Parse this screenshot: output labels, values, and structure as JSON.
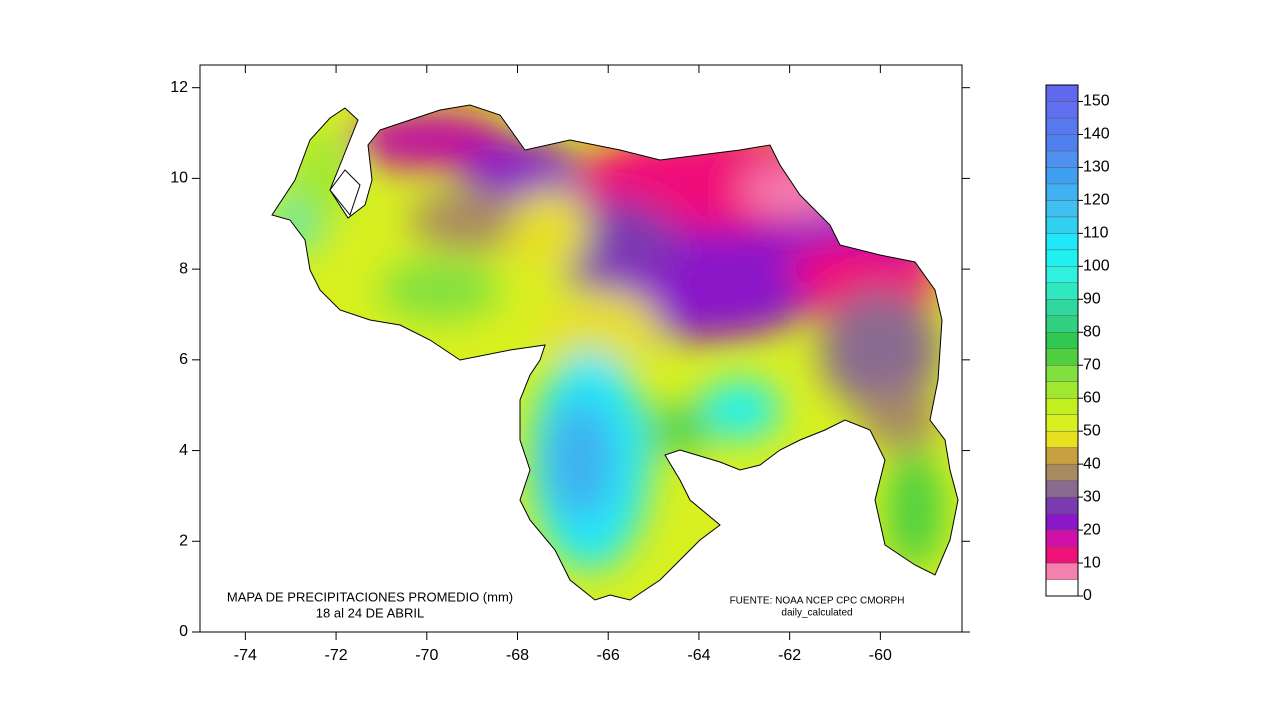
{
  "map": {
    "xlim": [
      -75,
      -58.2
    ],
    "ylim": [
      0,
      12.5
    ],
    "xticks": [
      -74,
      -72,
      -70,
      -68,
      -66,
      -64,
      -62,
      -60
    ],
    "yticks": [
      0,
      2,
      4,
      6,
      8,
      10,
      12
    ],
    "title": "MAPA DE PRECIPITACIONES PROMEDIO (mm)",
    "period": "18 al 24 DE ABRIL",
    "source": "FUENTE: NOAA NCEP CPC CMORPH",
    "source_note": "daily_calculated",
    "colorbar": {
      "lim": [
        0,
        155
      ],
      "ticks": [
        0,
        10,
        20,
        30,
        40,
        50,
        60,
        70,
        80,
        90,
        100,
        110,
        120,
        130,
        140,
        150
      ],
      "colors": [
        "#ffffff",
        "#f580b0",
        "#f0107a",
        "#d010a8",
        "#8a18c8",
        "#7a3ab0",
        "#8a6a90",
        "#a88a60",
        "#c8a040",
        "#e8e020",
        "#d8f020",
        "#c0f020",
        "#a0e830",
        "#80e040",
        "#50d040",
        "#30c850",
        "#30d080",
        "#30d8a0",
        "#30e8c0",
        "#30f0e0",
        "#20f0f0",
        "#20e8f8",
        "#30d0f0",
        "#40c0f0",
        "#40b0f0",
        "#40a0f0",
        "#5090f0",
        "#5080f0",
        "#5878f0",
        "#6070f0",
        "#6068f0"
      ]
    }
  }
}
